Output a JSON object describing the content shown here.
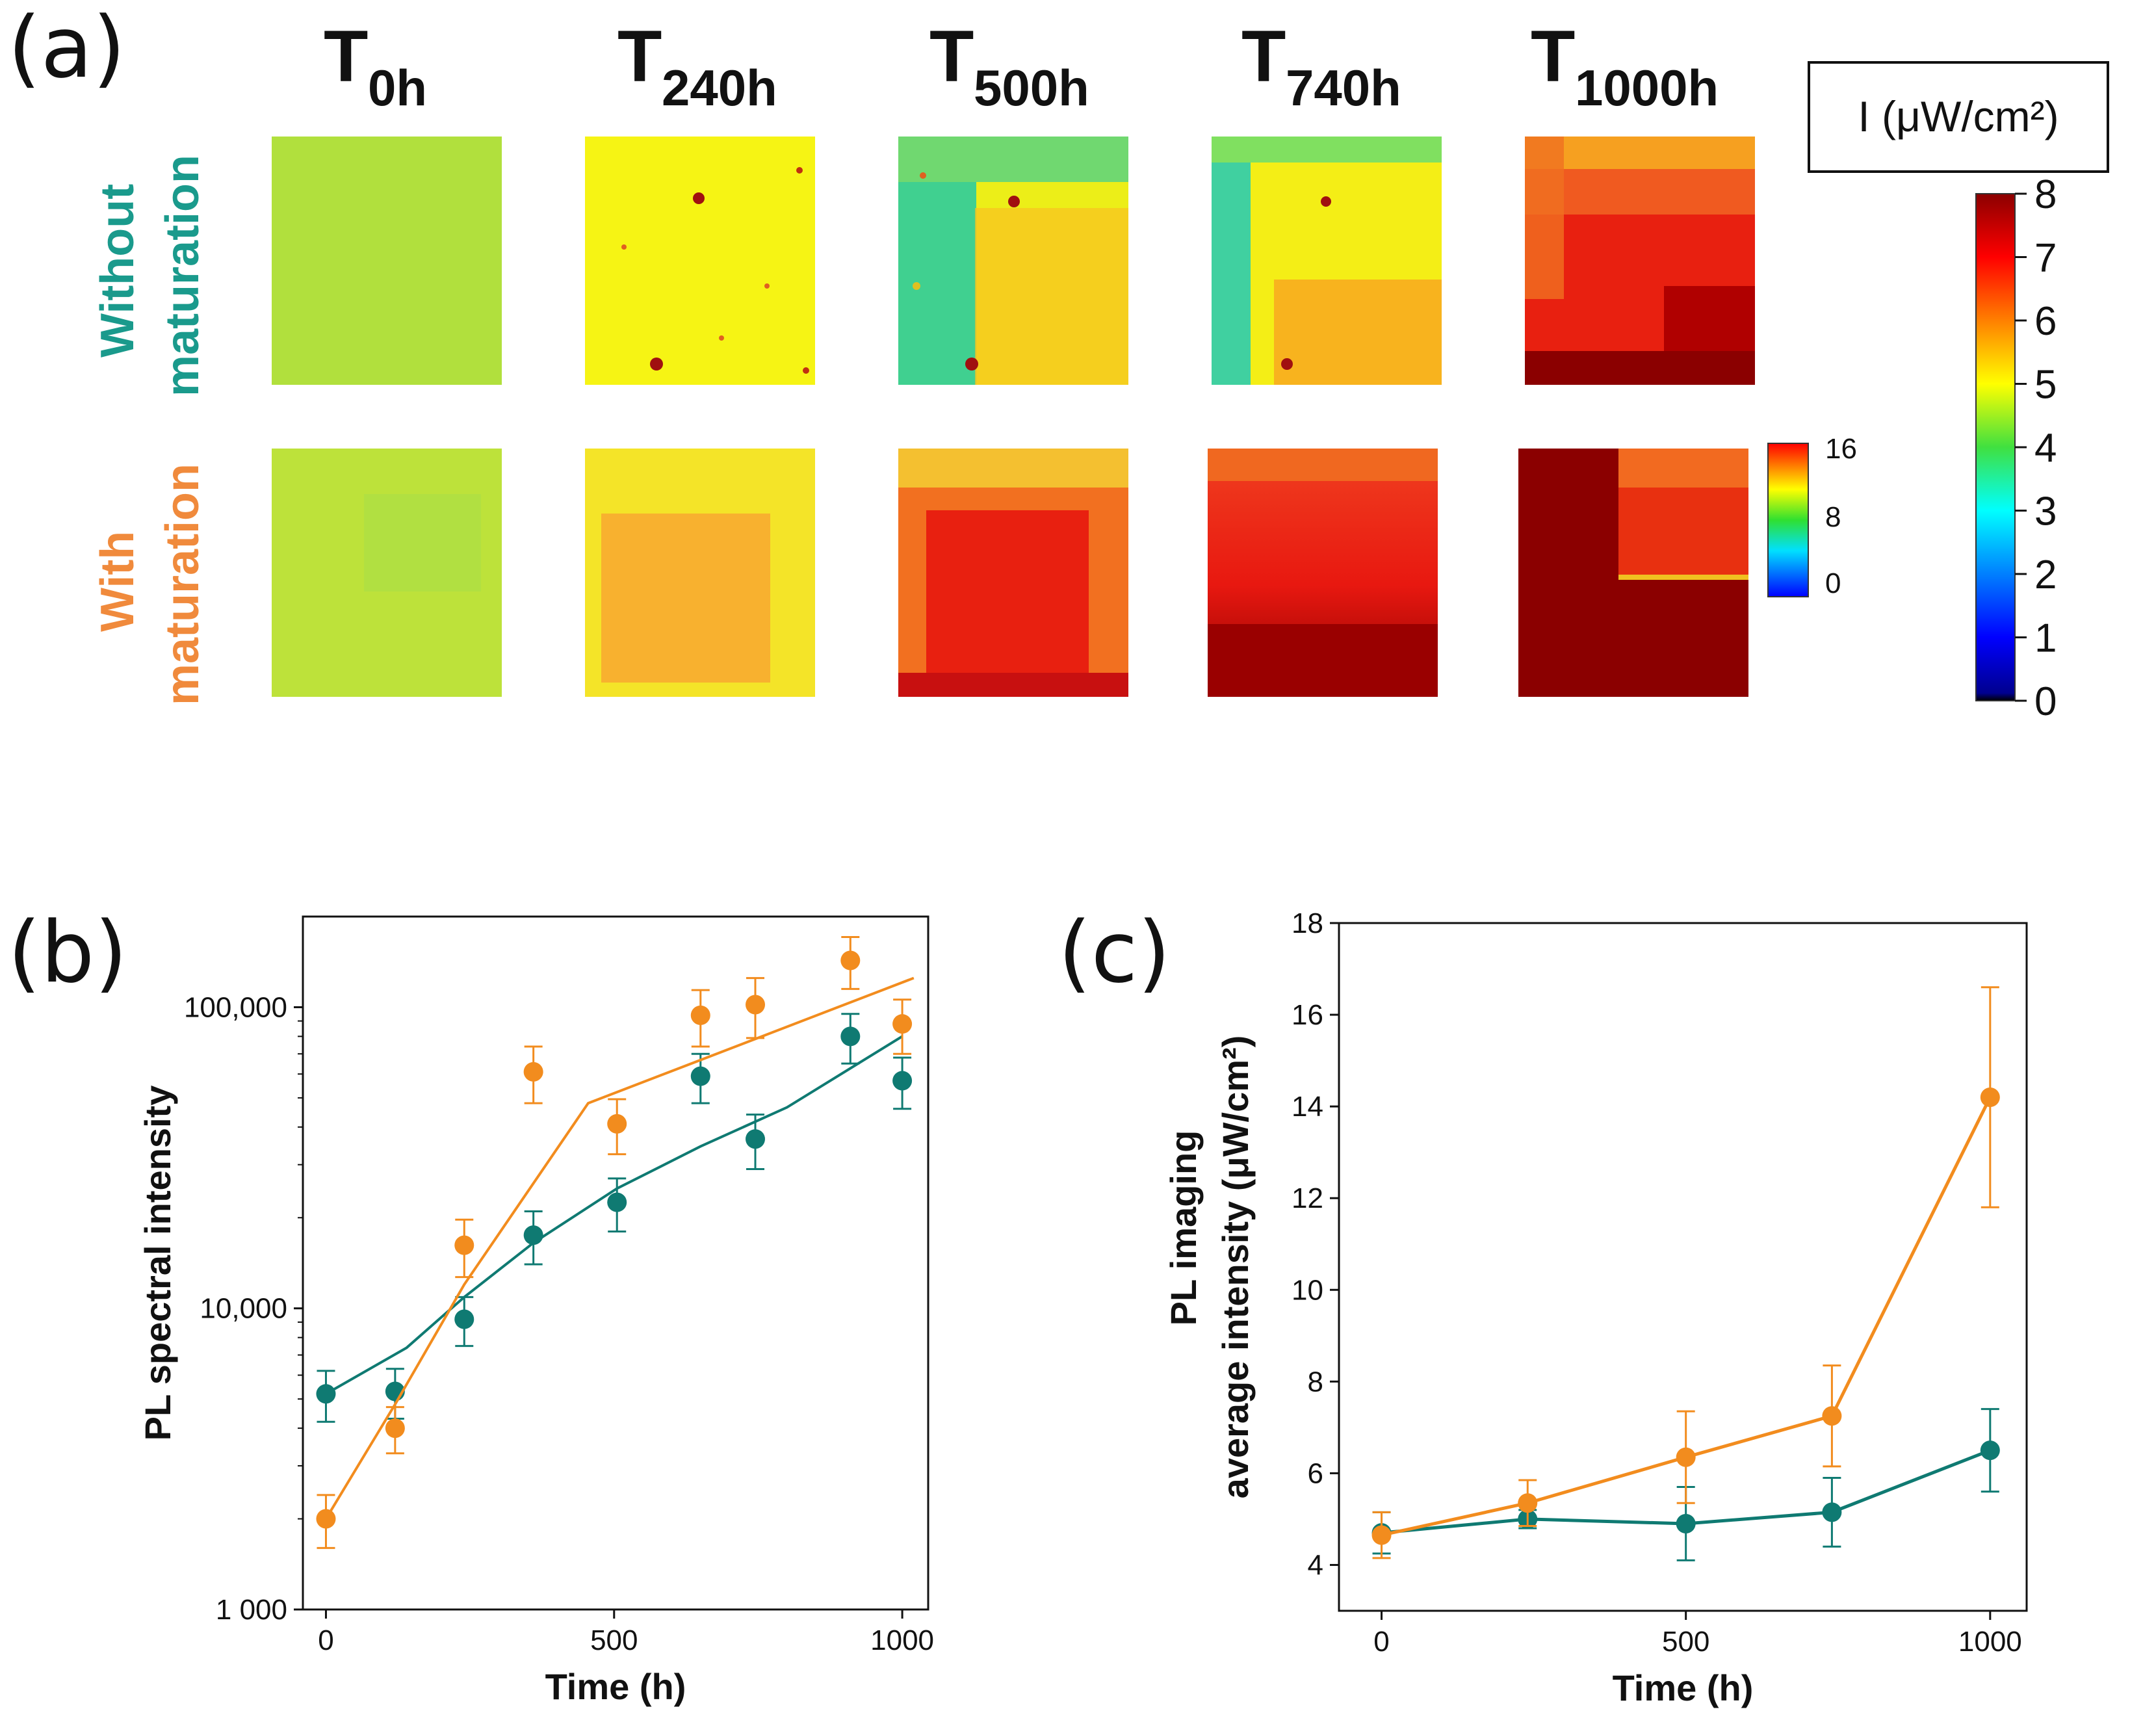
{
  "panels": {
    "a": "(a)",
    "b": "(b)",
    "c": "(c)"
  },
  "time_columns": [
    {
      "T": "T",
      "sub": "0h"
    },
    {
      "T": "T",
      "sub": "240h"
    },
    {
      "T": "T",
      "sub": "500h"
    },
    {
      "T": "T",
      "sub": "740h"
    },
    {
      "T": "T",
      "sub": "1000h"
    }
  ],
  "rows": [
    {
      "line1": "Without",
      "line2": "maturation",
      "color": "#1a9a8c"
    },
    {
      "line1": "With",
      "line2": "maturation",
      "color": "#f08a3c"
    }
  ],
  "colorbar_main": {
    "title": "I (μW/cm²)",
    "ticks": [
      "8",
      "7",
      "6",
      "5",
      "4",
      "3",
      "2",
      "1",
      "0"
    ]
  },
  "colorbar_small": {
    "ticks": [
      "16",
      "8",
      "0"
    ]
  },
  "colors": {
    "teal": "#0f7a72",
    "orange": "#f28c1e"
  },
  "chart_data": [
    {
      "id": "b",
      "type": "scatter",
      "yscale": "log",
      "title": "",
      "xlabel": "Time (h)",
      "ylabel": "PL spectral intensity",
      "xlim": [
        -40,
        1045
      ],
      "ylim": [
        1000,
        200000
      ],
      "xticks": [
        0,
        500,
        1000
      ],
      "xtick_labels": [
        "0",
        "500",
        "1000"
      ],
      "yticks": [
        1000,
        10000,
        100000
      ],
      "ytick_labels": [
        "1 000",
        "10,000",
        "100,000"
      ],
      "series": [
        {
          "name": "Without maturation",
          "color": "#0f7a72",
          "x": [
            0,
            120,
            240,
            360,
            505,
            650,
            745,
            910,
            1000
          ],
          "y": [
            5200,
            5300,
            9200,
            17500,
            22500,
            59000,
            36500,
            80000,
            57000
          ],
          "err": [
            1000,
            1000,
            1700,
            3500,
            4500,
            11000,
            7500,
            15000,
            11000
          ],
          "fit_x": [
            0,
            140,
            240,
            360,
            505,
            650,
            800,
            1000
          ],
          "fit_y": [
            5200,
            7400,
            10900,
            16500,
            25000,
            34500,
            46500,
            80000
          ]
        },
        {
          "name": "With maturation",
          "color": "#f28c1e",
          "x": [
            0,
            120,
            240,
            360,
            505,
            650,
            745,
            910,
            1000
          ],
          "y": [
            2000,
            4000,
            16200,
            61000,
            41000,
            94000,
            102000,
            143000,
            88000
          ],
          "err": [
            400,
            700,
            3500,
            13000,
            8500,
            20000,
            23000,
            28000,
            18000
          ],
          "fit_x": [
            0,
            120,
            240,
            455,
            1020
          ],
          "fit_y": [
            2000,
            4800,
            12000,
            48000,
            125000
          ]
        }
      ]
    },
    {
      "id": "c",
      "type": "line",
      "title": "",
      "xlabel": "Time (h)",
      "ylabel_line1": "PL imaging",
      "ylabel_line2": "average intensity (μW/cm²)",
      "xlim": [
        -70,
        1060
      ],
      "ylim": [
        3,
        18
      ],
      "xticks": [
        0,
        500,
        1000
      ],
      "xtick_labels": [
        "0",
        "500",
        "1000"
      ],
      "yticks": [
        4,
        6,
        8,
        10,
        12,
        14,
        16,
        18
      ],
      "ytick_labels": [
        "4",
        "6",
        "8",
        "10",
        "12",
        "14",
        "16",
        "18"
      ],
      "series": [
        {
          "name": "Without maturation",
          "color": "#0f7a72",
          "x": [
            0,
            240,
            500,
            740,
            1000
          ],
          "y": [
            4.7,
            5.0,
            4.9,
            5.15,
            6.5
          ],
          "err": [
            0.45,
            0.2,
            0.8,
            0.75,
            0.9
          ]
        },
        {
          "name": "With maturation",
          "color": "#f28c1e",
          "x": [
            0,
            240,
            500,
            740,
            1000
          ],
          "y": [
            4.65,
            5.35,
            6.35,
            7.25,
            14.2
          ],
          "err": [
            0.5,
            0.5,
            1.0,
            1.1,
            2.4
          ]
        }
      ]
    }
  ]
}
